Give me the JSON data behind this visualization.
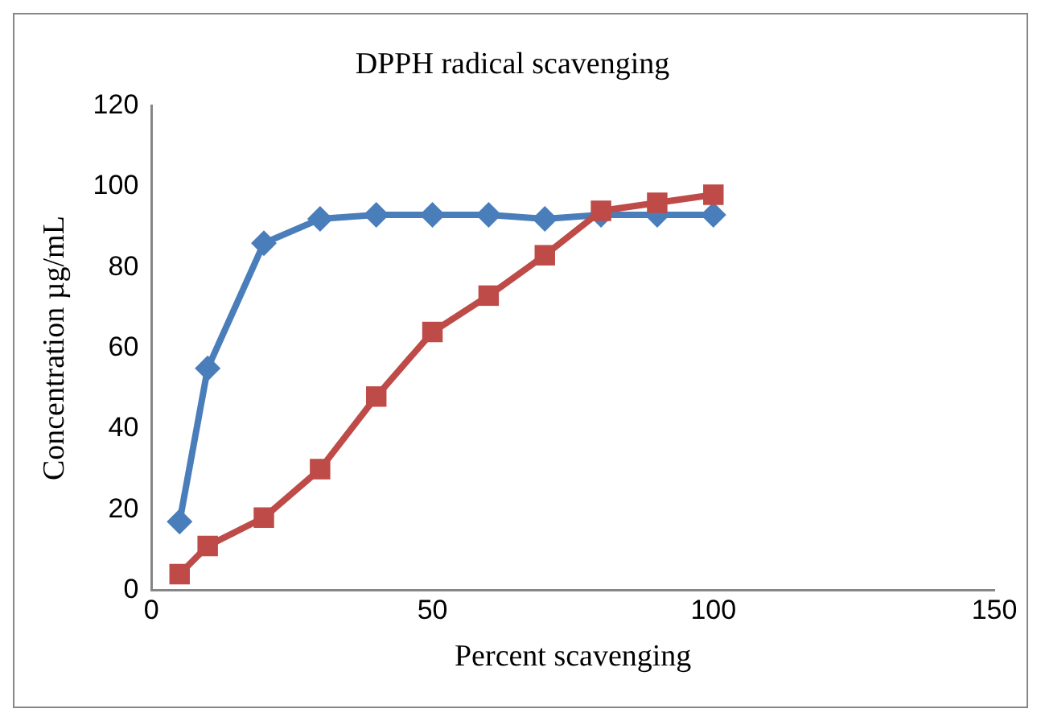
{
  "chart_data": {
    "type": "line",
    "title": "DPPH radical scavenging",
    "xlabel": "Percent scavenging",
    "ylabel": "Concentration µg/mL",
    "x": [
      5,
      10,
      20,
      30,
      40,
      50,
      60,
      70,
      80,
      90,
      100
    ],
    "series": [
      {
        "color": "#4a7ebb",
        "marker": "diamond",
        "values": [
          17,
          55,
          86,
          92,
          93,
          93,
          93,
          92,
          93,
          93,
          93
        ]
      },
      {
        "color": "#be4b48",
        "marker": "square",
        "values": [
          4,
          11,
          18,
          30,
          48,
          64,
          73,
          83,
          94,
          96,
          98
        ]
      }
    ],
    "xlim": [
      0,
      150
    ],
    "xticks": [
      0,
      50,
      100,
      150
    ],
    "ylim": [
      0,
      120
    ],
    "yticks": [
      0,
      20,
      40,
      60,
      80,
      100,
      120
    ],
    "grid": false,
    "legend": false,
    "line_style": "solid"
  }
}
